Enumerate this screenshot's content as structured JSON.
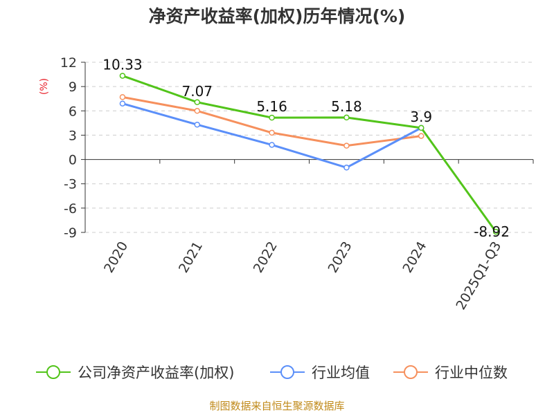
{
  "chart_data": {
    "type": "line",
    "title": "净资产收益率(加权)历年情况(%)",
    "ylabel": "(%)",
    "xlabel": "",
    "categories": [
      "2020",
      "2021",
      "2022",
      "2023",
      "2024",
      "2025Q1-Q3"
    ],
    "ylim": [
      -9,
      12
    ],
    "yticks": [
      12,
      9,
      6,
      3,
      0,
      -3,
      -6,
      -9
    ],
    "grid": true,
    "legend_position": "bottom",
    "series": [
      {
        "name": "公司净资产收益率(加权)",
        "color": "#52c41a",
        "values": [
          10.33,
          7.07,
          5.16,
          5.18,
          3.9,
          -8.92
        ],
        "labels": [
          "10.33",
          "7.07",
          "5.16",
          "5.18",
          "3.9",
          "-8.92"
        ]
      },
      {
        "name": "行业均值",
        "color": "#5b8ff9",
        "values": [
          6.9,
          4.3,
          1.8,
          -1.0,
          3.9,
          null
        ]
      },
      {
        "name": "行业中位数",
        "color": "#f6905d",
        "values": [
          7.7,
          6.0,
          3.3,
          1.7,
          2.9,
          null
        ]
      }
    ]
  },
  "footer": {
    "source": "制图数据来自恒生聚源数据库"
  }
}
